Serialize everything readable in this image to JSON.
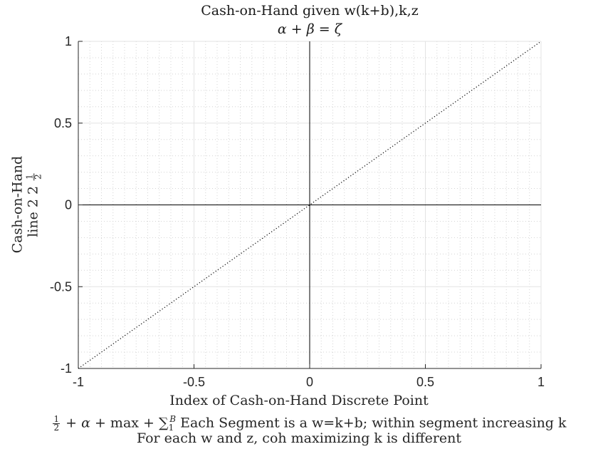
{
  "chart_data": {
    "type": "line",
    "title": [
      "Cash-on-Hand given w(k+b),k,z",
      "α + β = ζ"
    ],
    "xlabel": "Index of Cash-on-Hand Discrete Point",
    "xlabel_lines": [
      "1/2 + α + max + ∑_1^B Each Segment is a w=k+b; within segment increasing k",
      "For each w and z, coh maximizing k is different"
    ],
    "ylabel": [
      "Cash-on-Hand",
      "line 2 1/2"
    ],
    "xlim": [
      -1,
      1
    ],
    "ylim": [
      -1,
      1
    ],
    "xticks": [
      -1,
      -0.5,
      0,
      0.5,
      1
    ],
    "yticks": [
      -1,
      -0.5,
      0,
      0.5,
      1
    ],
    "xtick_labels": [
      "-1",
      "-0.5",
      "0",
      "0.5",
      "1"
    ],
    "ytick_labels": [
      "-1",
      "-0.5",
      "0",
      "0.5",
      "1"
    ],
    "grid": true,
    "minor_grid": true,
    "series": [
      {
        "x": [
          -1,
          1
        ],
        "y": [
          -1,
          1
        ],
        "style": "dotted",
        "color": "#000000"
      }
    ],
    "reference_lines": {
      "x": 0,
      "y": 0,
      "color": "#000000"
    }
  },
  "labels": {
    "title_line1": "Cash-on-Hand given w(k+b),k,z",
    "xlabel": "Index of Cash-on-Hand Discrete Point",
    "xlabel_line2_text": " Each Segment is a w=k+b; within segment increasing k",
    "xlabel_line3": "For each w and z, coh maximizing k is different",
    "ylabel_line1": "Cash-on-Hand",
    "ylabel_line2_text": "line 2"
  }
}
